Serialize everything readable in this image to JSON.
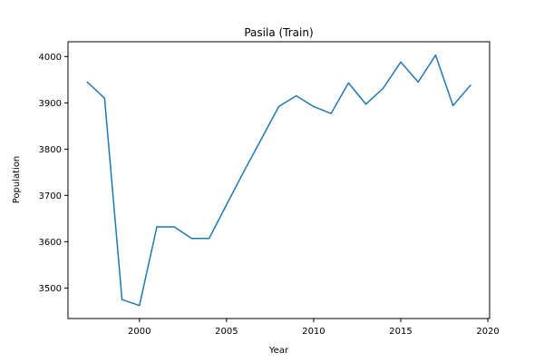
{
  "chart_data": {
    "type": "line",
    "title": "Pasila (Train)",
    "xlabel": "Year",
    "ylabel": "Population",
    "xlim": [
      1995.9,
      2020.1
    ],
    "ylim": [
      3434,
      4032
    ],
    "xticks": [
      2000,
      2005,
      2010,
      2015,
      2020
    ],
    "yticks": [
      3500,
      3600,
      3700,
      3800,
      3900,
      4000
    ],
    "grid": false,
    "series_color": "#1f77b4",
    "series": [
      {
        "x": [
          1997,
          1998,
          1999,
          2000,
          2001,
          2002,
          2003,
          2004,
          2005,
          2006,
          2007,
          2008,
          2009,
          2010,
          2011,
          2012,
          2013,
          2014,
          2015,
          2016,
          2017,
          2018,
          2019
        ],
        "values": [
          3945,
          3910,
          3475,
          3462,
          3632,
          3632,
          3607,
          3607,
          3680,
          3752,
          3822,
          3892,
          3915,
          3892,
          3877,
          3943,
          3897,
          3932,
          3988,
          3945,
          4003,
          3894,
          3938
        ]
      }
    ]
  }
}
